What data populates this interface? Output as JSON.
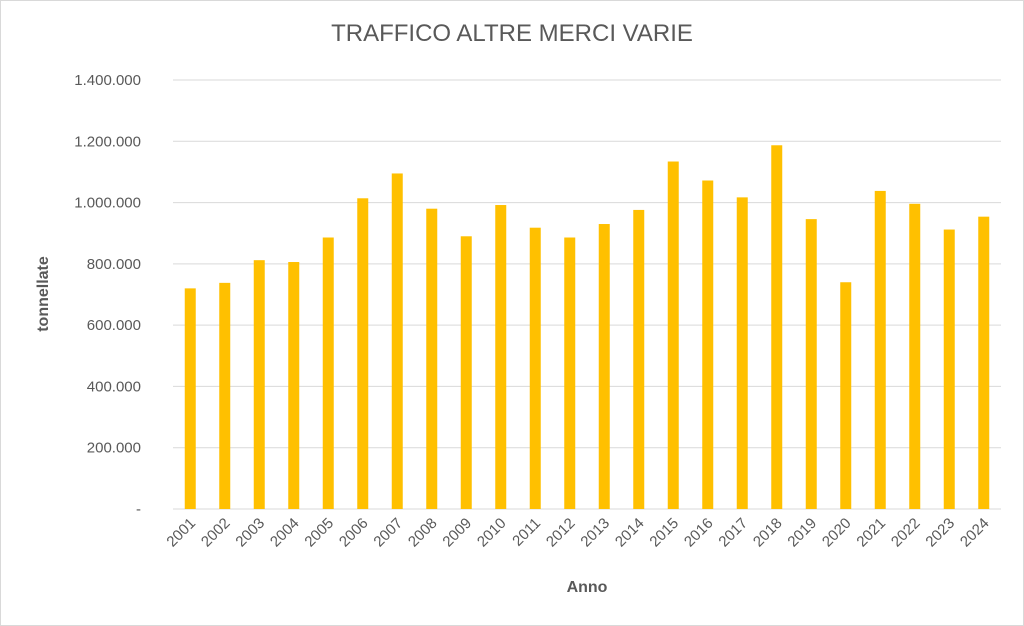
{
  "chart_data": {
    "type": "bar",
    "title": "TRAFFICO ALTRE MERCI VARIE",
    "xlabel": "Anno",
    "ylabel": "tonnellate",
    "categories": [
      "2001",
      "2002",
      "2003",
      "2004",
      "2005",
      "2006",
      "2007",
      "2008",
      "2009",
      "2010",
      "2011",
      "2012",
      "2013",
      "2014",
      "2015",
      "2016",
      "2017",
      "2018",
      "2019",
      "2020",
      "2021",
      "2022",
      "2023",
      "2024"
    ],
    "values": [
      720000,
      738000,
      812000,
      806000,
      886000,
      1014000,
      1095000,
      980000,
      890000,
      992000,
      918000,
      886000,
      930000,
      976000,
      1134000,
      1072000,
      1017000,
      1187000,
      946000,
      740000,
      1038000,
      996000,
      912000,
      954000
    ],
    "ylim": [
      0,
      1400000
    ],
    "yticks": [
      0,
      200000,
      400000,
      600000,
      800000,
      1000000,
      1200000,
      1400000
    ],
    "ytick_labels": [
      "-",
      "200.000",
      "400.000",
      "600.000",
      "800.000",
      "1.000.000",
      "1.200.000",
      "1.400.000"
    ],
    "grid": true,
    "bar_color": "#FFC000",
    "grid_color": "#d9d9d9",
    "text_color": "#595959"
  }
}
